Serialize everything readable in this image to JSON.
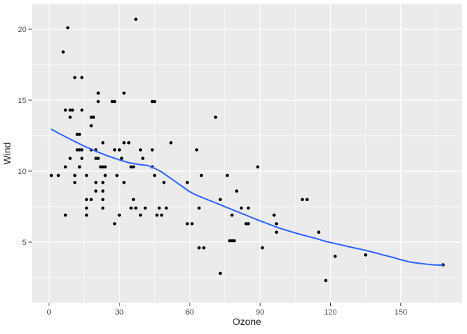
{
  "chart_data": {
    "type": "scatter",
    "title": "",
    "xlabel": "Ozone",
    "ylabel": "Wind",
    "xlim": [
      -7.3,
      176.1
    ],
    "ylim": [
      0.74,
      21.76
    ],
    "x_major_ticks": [
      0,
      30,
      60,
      90,
      120,
      150
    ],
    "x_minor_ticks": [
      15,
      45,
      75,
      105,
      135,
      165
    ],
    "y_major_ticks": [
      5,
      10,
      15,
      20
    ],
    "y_minor_ticks": [
      2.5,
      7.5,
      12.5,
      17.5
    ],
    "grid": "major and minor white gridlines on grey panel",
    "legend_position": "none",
    "theme": {
      "panel_background": "#EBEBEB",
      "grid_major_color": "#FFFFFF",
      "grid_minor_color": "#FFFFFF",
      "point_color": "#000000",
      "smooth_line_color": "#3366FF",
      "tick_label_color": "#4D4D4D",
      "axis_title_color": "#1A1A1A",
      "tick_mark_color": "#333333"
    },
    "series": [
      {
        "name": "observations",
        "type": "scatter",
        "points": [
          [
            41,
            7.4
          ],
          [
            36,
            8
          ],
          [
            12,
            12.6
          ],
          [
            18,
            11.5
          ],
          [
            28,
            14.9
          ],
          [
            23,
            8.6
          ],
          [
            19,
            13.8
          ],
          [
            8,
            20.1
          ],
          [
            7,
            6.9
          ],
          [
            16,
            9.7
          ],
          [
            11,
            9.2
          ],
          [
            14,
            10.9
          ],
          [
            18,
            13.2
          ],
          [
            14,
            11.5
          ],
          [
            34,
            12
          ],
          [
            6,
            18.4
          ],
          [
            30,
            11.5
          ],
          [
            11,
            9.7
          ],
          [
            1,
            9.7
          ],
          [
            11,
            16.6
          ],
          [
            4,
            9.7
          ],
          [
            32,
            12
          ],
          [
            23,
            12
          ],
          [
            45,
            14.9
          ],
          [
            115,
            5.7
          ],
          [
            37,
            7.4
          ],
          [
            29,
            9.7
          ],
          [
            71,
            13.8
          ],
          [
            39,
            11.5
          ],
          [
            23,
            8
          ],
          [
            21,
            14.9
          ],
          [
            37,
            20.7
          ],
          [
            20,
            9.2
          ],
          [
            12,
            11.5
          ],
          [
            13,
            10.3
          ],
          [
            135,
            4.1
          ],
          [
            49,
            9.2
          ],
          [
            32,
            9.2
          ],
          [
            64,
            4.6
          ],
          [
            40,
            10.9
          ],
          [
            77,
            5.1
          ],
          [
            97,
            6.3
          ],
          [
            97,
            5.7
          ],
          [
            85,
            7.4
          ],
          [
            10,
            14.3
          ],
          [
            27,
            14.9
          ],
          [
            7,
            14.3
          ],
          [
            48,
            6.9
          ],
          [
            35,
            10.3
          ],
          [
            61,
            6.3
          ],
          [
            79,
            5.1
          ],
          [
            63,
            11.5
          ],
          [
            16,
            6.9
          ],
          [
            80,
            8.6
          ],
          [
            108,
            8
          ],
          [
            20,
            8.6
          ],
          [
            52,
            12
          ],
          [
            82,
            7.4
          ],
          [
            50,
            7.4
          ],
          [
            64,
            7.4
          ],
          [
            59,
            9.2
          ],
          [
            39,
            6.9
          ],
          [
            9,
            13.8
          ],
          [
            16,
            7.4
          ],
          [
            78,
            6.9
          ],
          [
            35,
            7.4
          ],
          [
            66,
            4.6
          ],
          [
            122,
            4
          ],
          [
            89,
            10.3
          ],
          [
            110,
            8
          ],
          [
            44,
            11.5
          ],
          [
            28,
            11.5
          ],
          [
            65,
            9.7
          ],
          [
            22,
            10.3
          ],
          [
            59,
            6.3
          ],
          [
            23,
            7.4
          ],
          [
            31,
            10.9
          ],
          [
            44,
            10.3
          ],
          [
            21,
            15.5
          ],
          [
            9,
            14.3
          ],
          [
            45,
            9.7
          ],
          [
            168,
            3.4
          ],
          [
            73,
            8
          ],
          [
            76,
            9.7
          ],
          [
            118,
            2.3
          ],
          [
            84,
            6.3
          ],
          [
            85,
            6.3
          ],
          [
            96,
            6.9
          ],
          [
            78,
            5.1
          ],
          [
            73,
            2.8
          ],
          [
            91,
            4.6
          ],
          [
            47,
            7.4
          ],
          [
            32,
            15.5
          ],
          [
            20,
            10.9
          ],
          [
            23,
            10.3
          ],
          [
            21,
            10.9
          ],
          [
            24,
            9.7
          ],
          [
            44,
            14.9
          ],
          [
            21,
            15.5
          ],
          [
            28,
            6.3
          ],
          [
            9,
            10.9
          ],
          [
            13,
            11.5
          ],
          [
            46,
            6.9
          ],
          [
            18,
            13.8
          ],
          [
            13,
            10.3
          ],
          [
            24,
            10.3
          ],
          [
            16,
            8
          ],
          [
            13,
            12.6
          ],
          [
            23,
            9.2
          ],
          [
            36,
            10.3
          ],
          [
            7,
            10.3
          ],
          [
            14,
            16.6
          ],
          [
            30,
            6.9
          ],
          [
            14,
            14.3
          ],
          [
            18,
            8
          ],
          [
            20,
            11.5
          ]
        ]
      },
      {
        "name": "loess-smooth",
        "type": "line",
        "points": [
          [
            1,
            12.95
          ],
          [
            5,
            12.6
          ],
          [
            10,
            12.17
          ],
          [
            15,
            11.77
          ],
          [
            20,
            11.4
          ],
          [
            25,
            11.08
          ],
          [
            30,
            10.8
          ],
          [
            34,
            10.6
          ],
          [
            38,
            10.48
          ],
          [
            42,
            10.4
          ],
          [
            45,
            10.2
          ],
          [
            48,
            9.95
          ],
          [
            51,
            9.6
          ],
          [
            54,
            9.25
          ],
          [
            57,
            8.9
          ],
          [
            60,
            8.55
          ],
          [
            63,
            8.3
          ],
          [
            66,
            8.1
          ],
          [
            69,
            7.9
          ],
          [
            72,
            7.7
          ],
          [
            75,
            7.5
          ],
          [
            78,
            7.3
          ],
          [
            81,
            7.1
          ],
          [
            84,
            6.9
          ],
          [
            87,
            6.7
          ],
          [
            90,
            6.5
          ],
          [
            94,
            6.25
          ],
          [
            98,
            6.0
          ],
          [
            102,
            5.8
          ],
          [
            106,
            5.6
          ],
          [
            110,
            5.42
          ],
          [
            114,
            5.25
          ],
          [
            118,
            5.05
          ],
          [
            122,
            4.9
          ],
          [
            126,
            4.75
          ],
          [
            130,
            4.6
          ],
          [
            134,
            4.46
          ],
          [
            138,
            4.3
          ],
          [
            142,
            4.12
          ],
          [
            146,
            3.95
          ],
          [
            150,
            3.76
          ],
          [
            154,
            3.6
          ],
          [
            158,
            3.5
          ],
          [
            162,
            3.43
          ],
          [
            165,
            3.39
          ],
          [
            168,
            3.38
          ]
        ]
      }
    ]
  }
}
